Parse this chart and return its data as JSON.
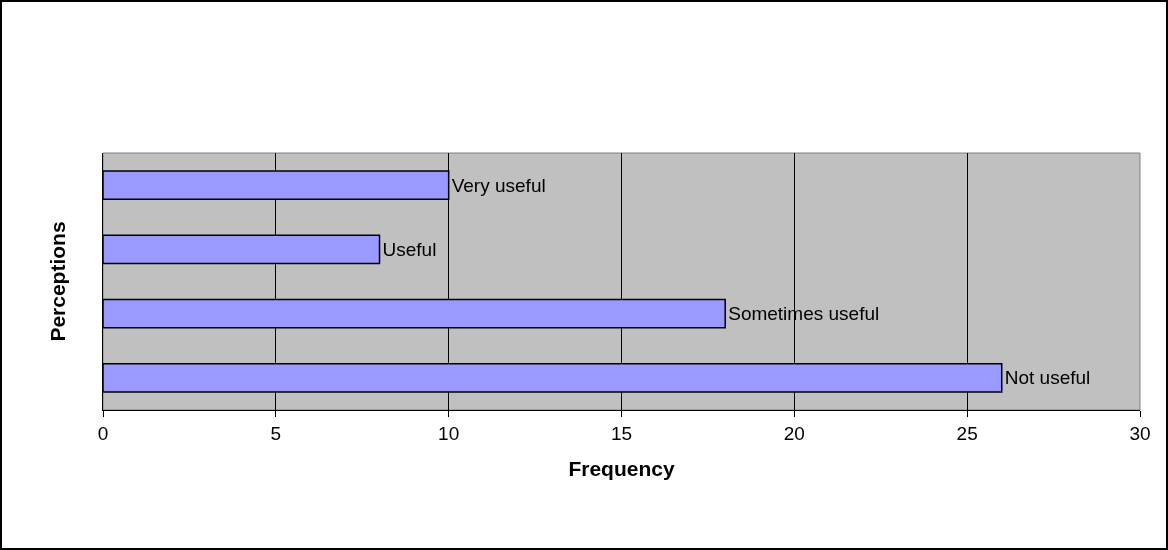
{
  "chart_data": {
    "type": "bar",
    "orientation": "horizontal",
    "xlabel": "Frequency",
    "ylabel": "Perceptions",
    "categories": [
      "Very useful",
      "Useful",
      "Sometimes useful",
      "Not useful"
    ],
    "values": [
      10,
      8,
      18,
      26
    ],
    "color": "#9999ff",
    "xlim": [
      0,
      30
    ],
    "xticks": [
      0,
      5,
      10,
      15,
      20,
      25,
      30
    ],
    "grid": "x",
    "tick_labels": "x",
    "legend": false
  }
}
